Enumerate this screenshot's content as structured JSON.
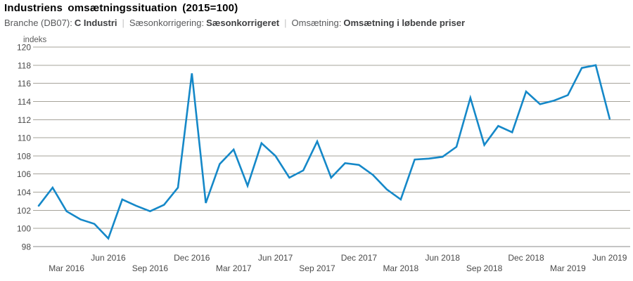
{
  "header": {
    "title": "Industriens omsætningssituation (2015=100)",
    "separator": "|",
    "filters": [
      {
        "label": "Branche (DB07):",
        "value": "C Industri"
      },
      {
        "label": "Sæsonkorrigering:",
        "value": "Sæsonkorrigeret"
      },
      {
        "label": "Omsætning:",
        "value": "Omsætning i løbende priser"
      }
    ]
  },
  "chart_data": {
    "type": "line",
    "title": "Industriens omsætningssituation (2015=100)",
    "unit_label": "indeks",
    "ylabel": "indeks",
    "xlabel": "",
    "ylim": [
      98,
      120
    ],
    "ytick_step": 2,
    "yticks": [
      98,
      100,
      102,
      104,
      106,
      108,
      110,
      112,
      114,
      116,
      118,
      120
    ],
    "grid": true,
    "legend_position": "none",
    "xtick_labels": [
      "Mar 2016",
      "Jun 2016",
      "Sep 2016",
      "Dec 2016",
      "Mar 2017",
      "Jun 2017",
      "Sep 2017",
      "Dec 2017",
      "Mar 2018",
      "Jun 2018",
      "Sep 2018",
      "Dec 2018",
      "Mar 2019",
      "Jun 2019"
    ],
    "x": [
      "Jan 2016",
      "Feb 2016",
      "Mar 2016",
      "Apr 2016",
      "Maj 2016",
      "Jun 2016",
      "Jul 2016",
      "Aug 2016",
      "Sep 2016",
      "Okt 2016",
      "Nov 2016",
      "Dec 2016",
      "Jan 2017",
      "Feb 2017",
      "Mar 2017",
      "Apr 2017",
      "Maj 2017",
      "Jun 2017",
      "Jul 2017",
      "Aug 2017",
      "Sep 2017",
      "Okt 2017",
      "Nov 2017",
      "Dec 2017",
      "Jan 2018",
      "Feb 2018",
      "Mar 2018",
      "Apr 2018",
      "Maj 2018",
      "Jun 2018",
      "Jul 2018",
      "Aug 2018",
      "Sep 2018",
      "Okt 2018",
      "Nov 2018",
      "Dec 2018",
      "Jan 2019",
      "Feb 2019",
      "Mar 2019",
      "Apr 2019",
      "Maj 2019",
      "Jun 2019"
    ],
    "series": [
      {
        "name": "Omsætning i løbende priser",
        "values": [
          102.5,
          104.5,
          101.9,
          101.0,
          100.5,
          98.9,
          103.2,
          102.5,
          101.9,
          102.6,
          104.5,
          117.1,
          102.8,
          107.1,
          108.7,
          104.7,
          109.4,
          108.0,
          105.6,
          106.4,
          109.6,
          105.6,
          107.2,
          107.0,
          105.9,
          104.3,
          103.2,
          107.6,
          107.7,
          107.9,
          109.0,
          114.4,
          109.2,
          111.3,
          110.6,
          115.1,
          113.7,
          114.1,
          114.7,
          117.7,
          118.0,
          112.1
        ]
      }
    ],
    "colors": {
      "line": "#1588c8",
      "grid": "#a6a39a",
      "axis": "#8a8a8a",
      "tick_text": "#4a4a4a",
      "unit_text": "#5a5a5a"
    }
  }
}
